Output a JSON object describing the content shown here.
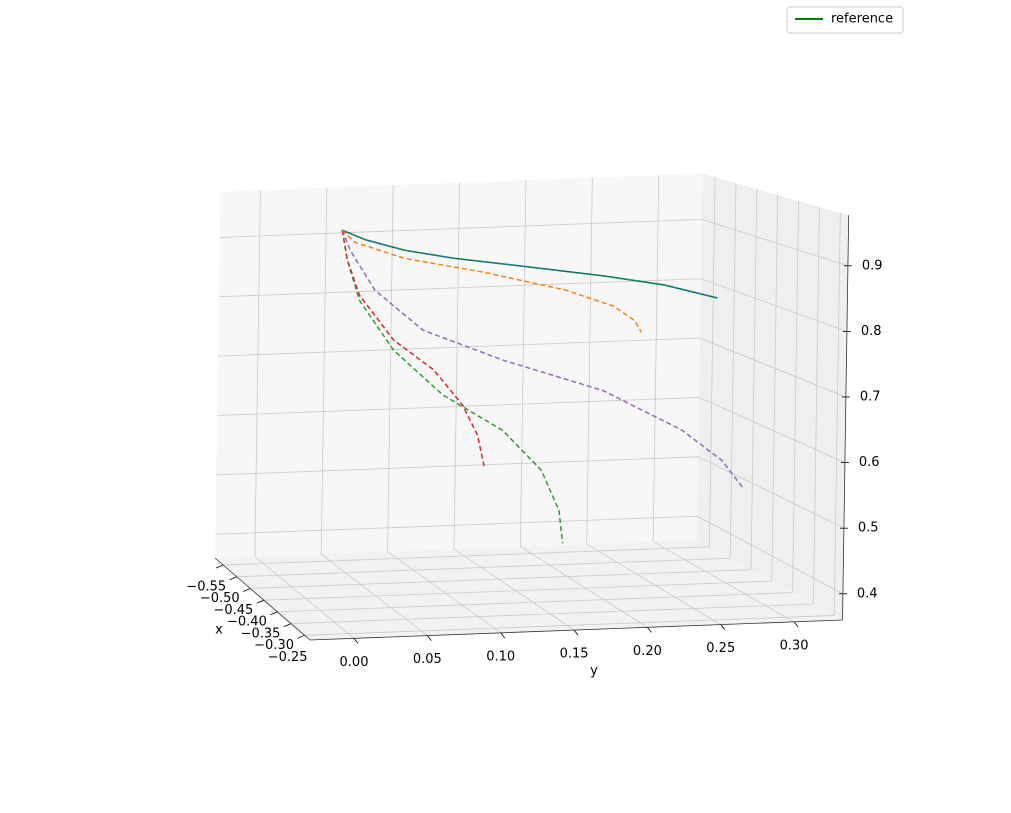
{
  "chart_data": {
    "type": "line3d",
    "xlabel": "x",
    "ylabel": "y",
    "xlim": [
      -0.58,
      -0.23
    ],
    "ylim": [
      -0.03,
      0.333
    ],
    "zlim": [
      0.36,
      0.977
    ],
    "xticks": [
      {
        "value": -0.55,
        "label": "−0.55"
      },
      {
        "value": -0.5,
        "label": "−0.50"
      },
      {
        "value": -0.45,
        "label": "−0.45"
      },
      {
        "value": -0.4,
        "label": "−0.40"
      },
      {
        "value": -0.35,
        "label": "−0.35"
      },
      {
        "value": -0.3,
        "label": "−0.30"
      },
      {
        "value": -0.25,
        "label": "−0.25"
      }
    ],
    "yticks": [
      {
        "value": 0,
        "label": "0.00"
      },
      0.05,
      {
        "value": 0.1,
        "label": "0.10"
      },
      0.15,
      {
        "value": 0.2,
        "label": "0.20"
      },
      0.25,
      {
        "value": 0.3,
        "label": "0.30"
      }
    ],
    "zticks": [
      0.4,
      0.5,
      0.6,
      0.7,
      0.8,
      0.9
    ],
    "grid": true,
    "legend_position": "upper right",
    "series": [
      {
        "name": "reference",
        "color": "#008000",
        "linestyle": "solid",
        "x": -0.4,
        "y": [
          0.022,
          0.039,
          0.067,
          0.103,
          0.153,
          0.21,
          0.253,
          0.291
        ],
        "z": [
          0.947,
          0.93,
          0.911,
          0.895,
          0.878,
          0.858,
          0.84,
          0.816
        ]
      },
      {
        "color": "#1f77b4",
        "linestyle": "dashed",
        "x": -0.4,
        "y": [
          0.022,
          0.039,
          0.067,
          0.103,
          0.153,
          0.21,
          0.253,
          0.291
        ],
        "z": [
          0.947,
          0.93,
          0.911,
          0.895,
          0.878,
          0.858,
          0.84,
          0.816
        ]
      },
      {
        "color": "#ff7f0e",
        "linestyle": "dashed",
        "x": -0.4,
        "y": [
          0.022,
          0.031,
          0.067,
          0.124,
          0.182,
          0.217,
          0.232,
          0.237
        ],
        "z": [
          0.947,
          0.927,
          0.898,
          0.871,
          0.838,
          0.809,
          0.785,
          0.766
        ]
      },
      {
        "color": "#2ca02c",
        "linestyle": "dashed",
        "x": -0.4,
        "y": [
          0.022,
          0.026,
          0.035,
          0.06,
          0.096,
          0.139,
          0.167,
          0.18,
          0.183
        ],
        "z": [
          0.947,
          0.899,
          0.834,
          0.752,
          0.677,
          0.617,
          0.551,
          0.486,
          0.433
        ]
      },
      {
        "color": "#d62728",
        "linestyle": "dashed",
        "x": -0.4,
        "y": [
          0.022,
          0.026,
          0.035,
          0.06,
          0.089,
          0.11,
          0.121,
          0.126
        ],
        "z": [
          0.947,
          0.899,
          0.842,
          0.768,
          0.718,
          0.66,
          0.611,
          0.561
        ]
      },
      {
        "color": "#9467bd",
        "linestyle": "dashed",
        "x": -0.4,
        "y": [
          0.022,
          0.028,
          0.046,
          0.081,
          0.139,
          0.21,
          0.267,
          0.296,
          0.312
        ],
        "z": [
          0.947,
          0.914,
          0.849,
          0.782,
          0.729,
          0.675,
          0.607,
          0.556,
          0.509
        ]
      }
    ]
  }
}
